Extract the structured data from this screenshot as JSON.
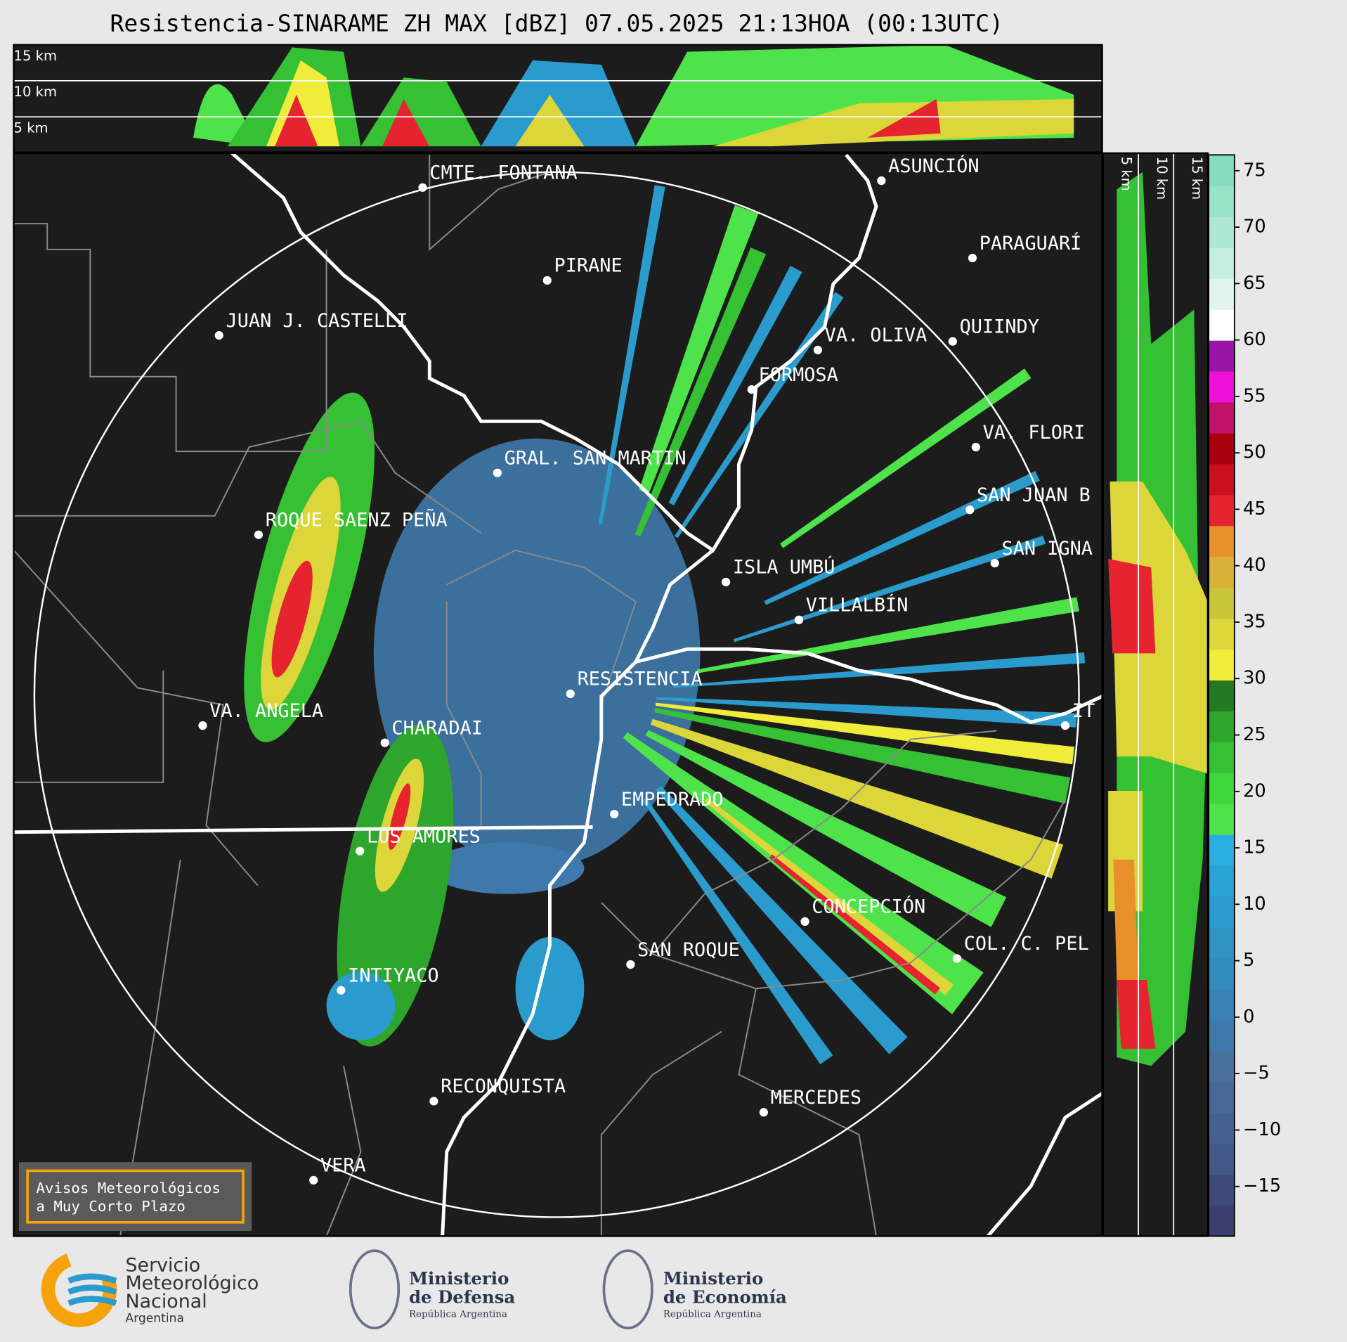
{
  "title": "Resistencia-SINARAME ZH MAX [dBZ] 07.05.2025 21:13HOA (00:13UTC)",
  "top_height_labels": [
    "15 km",
    "10 km",
    "5 km"
  ],
  "side_height_labels": [
    "5 km",
    "10 km",
    "15 km"
  ],
  "places": [
    "CMTE. FONTANA",
    "PIRANE",
    "JUAN J. CASTELLI",
    "ASUNCIÓN",
    "PARAGUARÍ",
    "VA. OLIVA",
    "QUIINDY",
    "FORMOSA",
    "VA. FLORI",
    "SAN JUAN B",
    "SAN IGNA",
    "ISLA UMBÚ",
    "VILLALBÍN",
    "GRAL. SAN MARTIN",
    "ROQUE SAENZ PEÑA",
    "RESISTENCIA",
    "VA. ANGELA",
    "CHARADAI",
    "IT",
    "EMPEDRADO",
    "LOS AMORES",
    "CONCEPCIÓN",
    "COL. C. PEL",
    "SAN ROQUE",
    "INTIYACO",
    "RECONQUISTA",
    "MERCEDES",
    "VERA"
  ],
  "colorbar": {
    "range": [
      -19.4,
      76.4
    ],
    "ticks": [
      75,
      70,
      65,
      60,
      55,
      50,
      45,
      40,
      35,
      30,
      25,
      20,
      15,
      10,
      5,
      0,
      {
        "value": -5,
        "label": "−5"
      },
      {
        "value": -10,
        "label": "−10"
      },
      {
        "value": -15,
        "label": "−15"
      }
    ],
    "colors": [
      "#3b3f6e",
      "#404a7a",
      "#445888",
      "#46608f",
      "#476896",
      "#4a709c",
      "#3f79ab",
      "#3a82b5",
      "#348bbd",
      "#2f93c4",
      "#2a9bcc",
      "#28a3d3",
      "#2aafe0",
      "#4ee34a",
      "#3fd83c",
      "#36c034",
      "#2ea52c",
      "#237a21",
      "#f0ec3a",
      "#dcd63a",
      "#c9c53a",
      "#d8b13a",
      "#e8902a",
      "#e6242f",
      "#cc0f1f",
      "#a8000f",
      "#c0126a",
      "#ee10d8",
      "#9a14a8",
      "#ffffff",
      "#e0f5ee",
      "#c4efe0",
      "#aee8d4",
      "#98e2c8",
      "#86dcbf"
    ]
  },
  "notice": [
    "Avisos Meteorológicos",
    "a Muy Corto Plazo"
  ],
  "logos": {
    "smn": [
      "Servicio",
      "Meteorológico",
      "Nacional",
      "Argentina"
    ],
    "defensa": [
      "Ministerio",
      "de Defensa",
      "República Argentina"
    ],
    "economia": [
      "Ministerio",
      "de Economía",
      "República Argentina"
    ]
  }
}
